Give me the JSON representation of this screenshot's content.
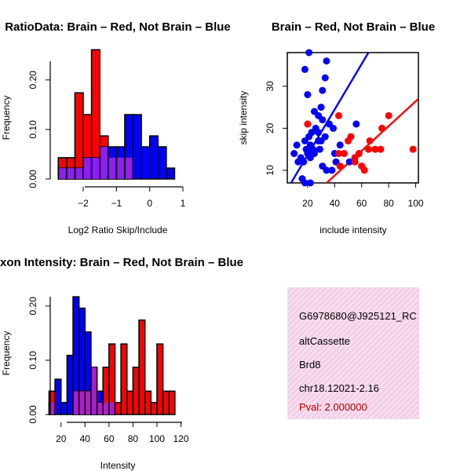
{
  "colors": {
    "red": "#ff0000",
    "blue": "#0000ff",
    "overlap": "#a020f0",
    "panel_bg": "#f7dcee",
    "panel_stripe": "#ecb6d8"
  },
  "chart_data": [
    {
      "id": "ratio-hist",
      "type": "bar",
      "title": "RatioData: Brain – Red, Not Brain – Blue",
      "xlabel": "Log2 Ratio Skip/Include",
      "ylabel": "Frequency",
      "xlim": [
        -2.85,
        1.0
      ],
      "ylim": [
        0,
        0.26
      ],
      "xticks": [
        -2,
        -1,
        0,
        1
      ],
      "xtick_labels": [
        "−2",
        "−1",
        "0",
        "1"
      ],
      "yticks": [
        0.0,
        0.1,
        0.2
      ],
      "ytick_labels": [
        "0.00",
        "0.10",
        "0.20"
      ],
      "bin_edges": [
        -2.75,
        -2.5,
        -2.25,
        -2.0,
        -1.75,
        -1.5,
        -1.25,
        -1.0,
        -0.75,
        -0.5,
        -0.25,
        0.0,
        0.25,
        0.5,
        0.75
      ],
      "series": [
        {
          "name": "Brain",
          "color": "red",
          "values": [
            0.043,
            0.043,
            0.174,
            0.13,
            0.261,
            0.087,
            0.043,
            0.043,
            0.043,
            0,
            0,
            0,
            0,
            0
          ]
        },
        {
          "name": "Not Brain",
          "color": "blue",
          "values": [
            0.022,
            0.022,
            0.022,
            0.043,
            0.043,
            0.065,
            0.065,
            0.065,
            0.13,
            0.13,
            0.065,
            0.087,
            0.065,
            0.022
          ]
        }
      ]
    },
    {
      "id": "scatter",
      "type": "scatter",
      "title": "Brain – Red, Not Brain – Blue",
      "xlabel": "include intensity",
      "ylabel": "skip intensity",
      "xlim": [
        5,
        102
      ],
      "ylim": [
        7,
        38
      ],
      "xticks": [
        20,
        40,
        60,
        80,
        100
      ],
      "xtick_labels": [
        "20",
        "40",
        "60",
        "80",
        "100"
      ],
      "yticks": [
        10,
        20,
        30
      ],
      "ytick_labels": [
        "10",
        "20",
        "30"
      ],
      "series": [
        {
          "name": "Not Brain",
          "color": "blue",
          "x": [
            21,
            34,
            18,
            33,
            31,
            20,
            30,
            28,
            25,
            26,
            23,
            36,
            30,
            19,
            12,
            10,
            18,
            15,
            21,
            22,
            28,
            33,
            25,
            39,
            22,
            17,
            13,
            20,
            24,
            29,
            31,
            34,
            41,
            44,
            38,
            55,
            51,
            40,
            56,
            28,
            31,
            18,
            22,
            16
          ],
          "y": [
            38,
            36,
            34,
            32,
            29,
            28,
            25,
            23,
            24,
            20,
            19,
            21,
            17,
            15,
            16,
            14,
            17,
            13,
            18,
            16,
            17,
            18,
            14,
            20,
            13,
            12,
            12,
            14,
            15,
            15,
            11,
            10,
            12,
            16,
            10,
            13,
            12,
            14,
            21,
            19,
            22,
            7,
            7,
            8
          ],
          "fit": [
            [
              5,
              5.5
            ],
            [
              65,
              38
            ]
          ]
        },
        {
          "name": "Brain",
          "color": "red",
          "x": [
            20,
            43,
            44,
            47,
            52,
            55,
            58,
            62,
            66,
            70,
            75,
            80,
            55,
            60,
            43,
            50,
            98,
            65,
            74
          ],
          "y": [
            21,
            23,
            11,
            14,
            18,
            13,
            14,
            10,
            17,
            15,
            20,
            23,
            12,
            11,
            14,
            17,
            15,
            15,
            15
          ],
          "fit": [
            [
              29,
              5.5
            ],
            [
              102,
              27
            ]
          ]
        }
      ]
    },
    {
      "id": "intensity-hist",
      "type": "bar",
      "title": "Exon Intensity: Brain – Red, Not Brain – Blue",
      "xlabel": "Intensity",
      "ylabel": "Frequency",
      "xlim": [
        11,
        121
      ],
      "ylim": [
        0,
        0.22
      ],
      "xticks": [
        20,
        40,
        60,
        80,
        100,
        120
      ],
      "xtick_labels": [
        "20",
        "40",
        "60",
        "80",
        "100",
        "120"
      ],
      "yticks": [
        0.0,
        0.1,
        0.2
      ],
      "ytick_labels": [
        "0.00",
        "0.10",
        "0.20"
      ],
      "bin_edges": [
        10,
        15,
        20,
        25,
        30,
        35,
        40,
        45,
        50,
        55,
        60,
        65,
        70,
        75,
        80,
        85,
        90,
        95,
        100,
        105,
        110,
        115
      ],
      "series": [
        {
          "name": "Not Brain",
          "color": "blue",
          "values": [
            0.022,
            0.065,
            0.022,
            0.109,
            0.217,
            0.196,
            0.152,
            0.087,
            0.043,
            0.022,
            0.022,
            0,
            0,
            0,
            0,
            0,
            0,
            0,
            0,
            0,
            0
          ]
        },
        {
          "name": "Brain",
          "color": "red",
          "values": [
            0.043,
            0,
            0,
            0,
            0.043,
            0.043,
            0.043,
            0.087,
            0.022,
            0.087,
            0.13,
            0.022,
            0.13,
            0.043,
            0.087,
            0.174,
            0.043,
            0.022,
            0.13,
            0.043,
            0.043
          ]
        }
      ]
    }
  ],
  "info_panel": {
    "probe_id": "G6978680@J925121_RC",
    "event_type": "altCassette",
    "gene": "Brd8",
    "location": "chr18.12021-2.16",
    "pval": "Pval: 2.000000"
  }
}
